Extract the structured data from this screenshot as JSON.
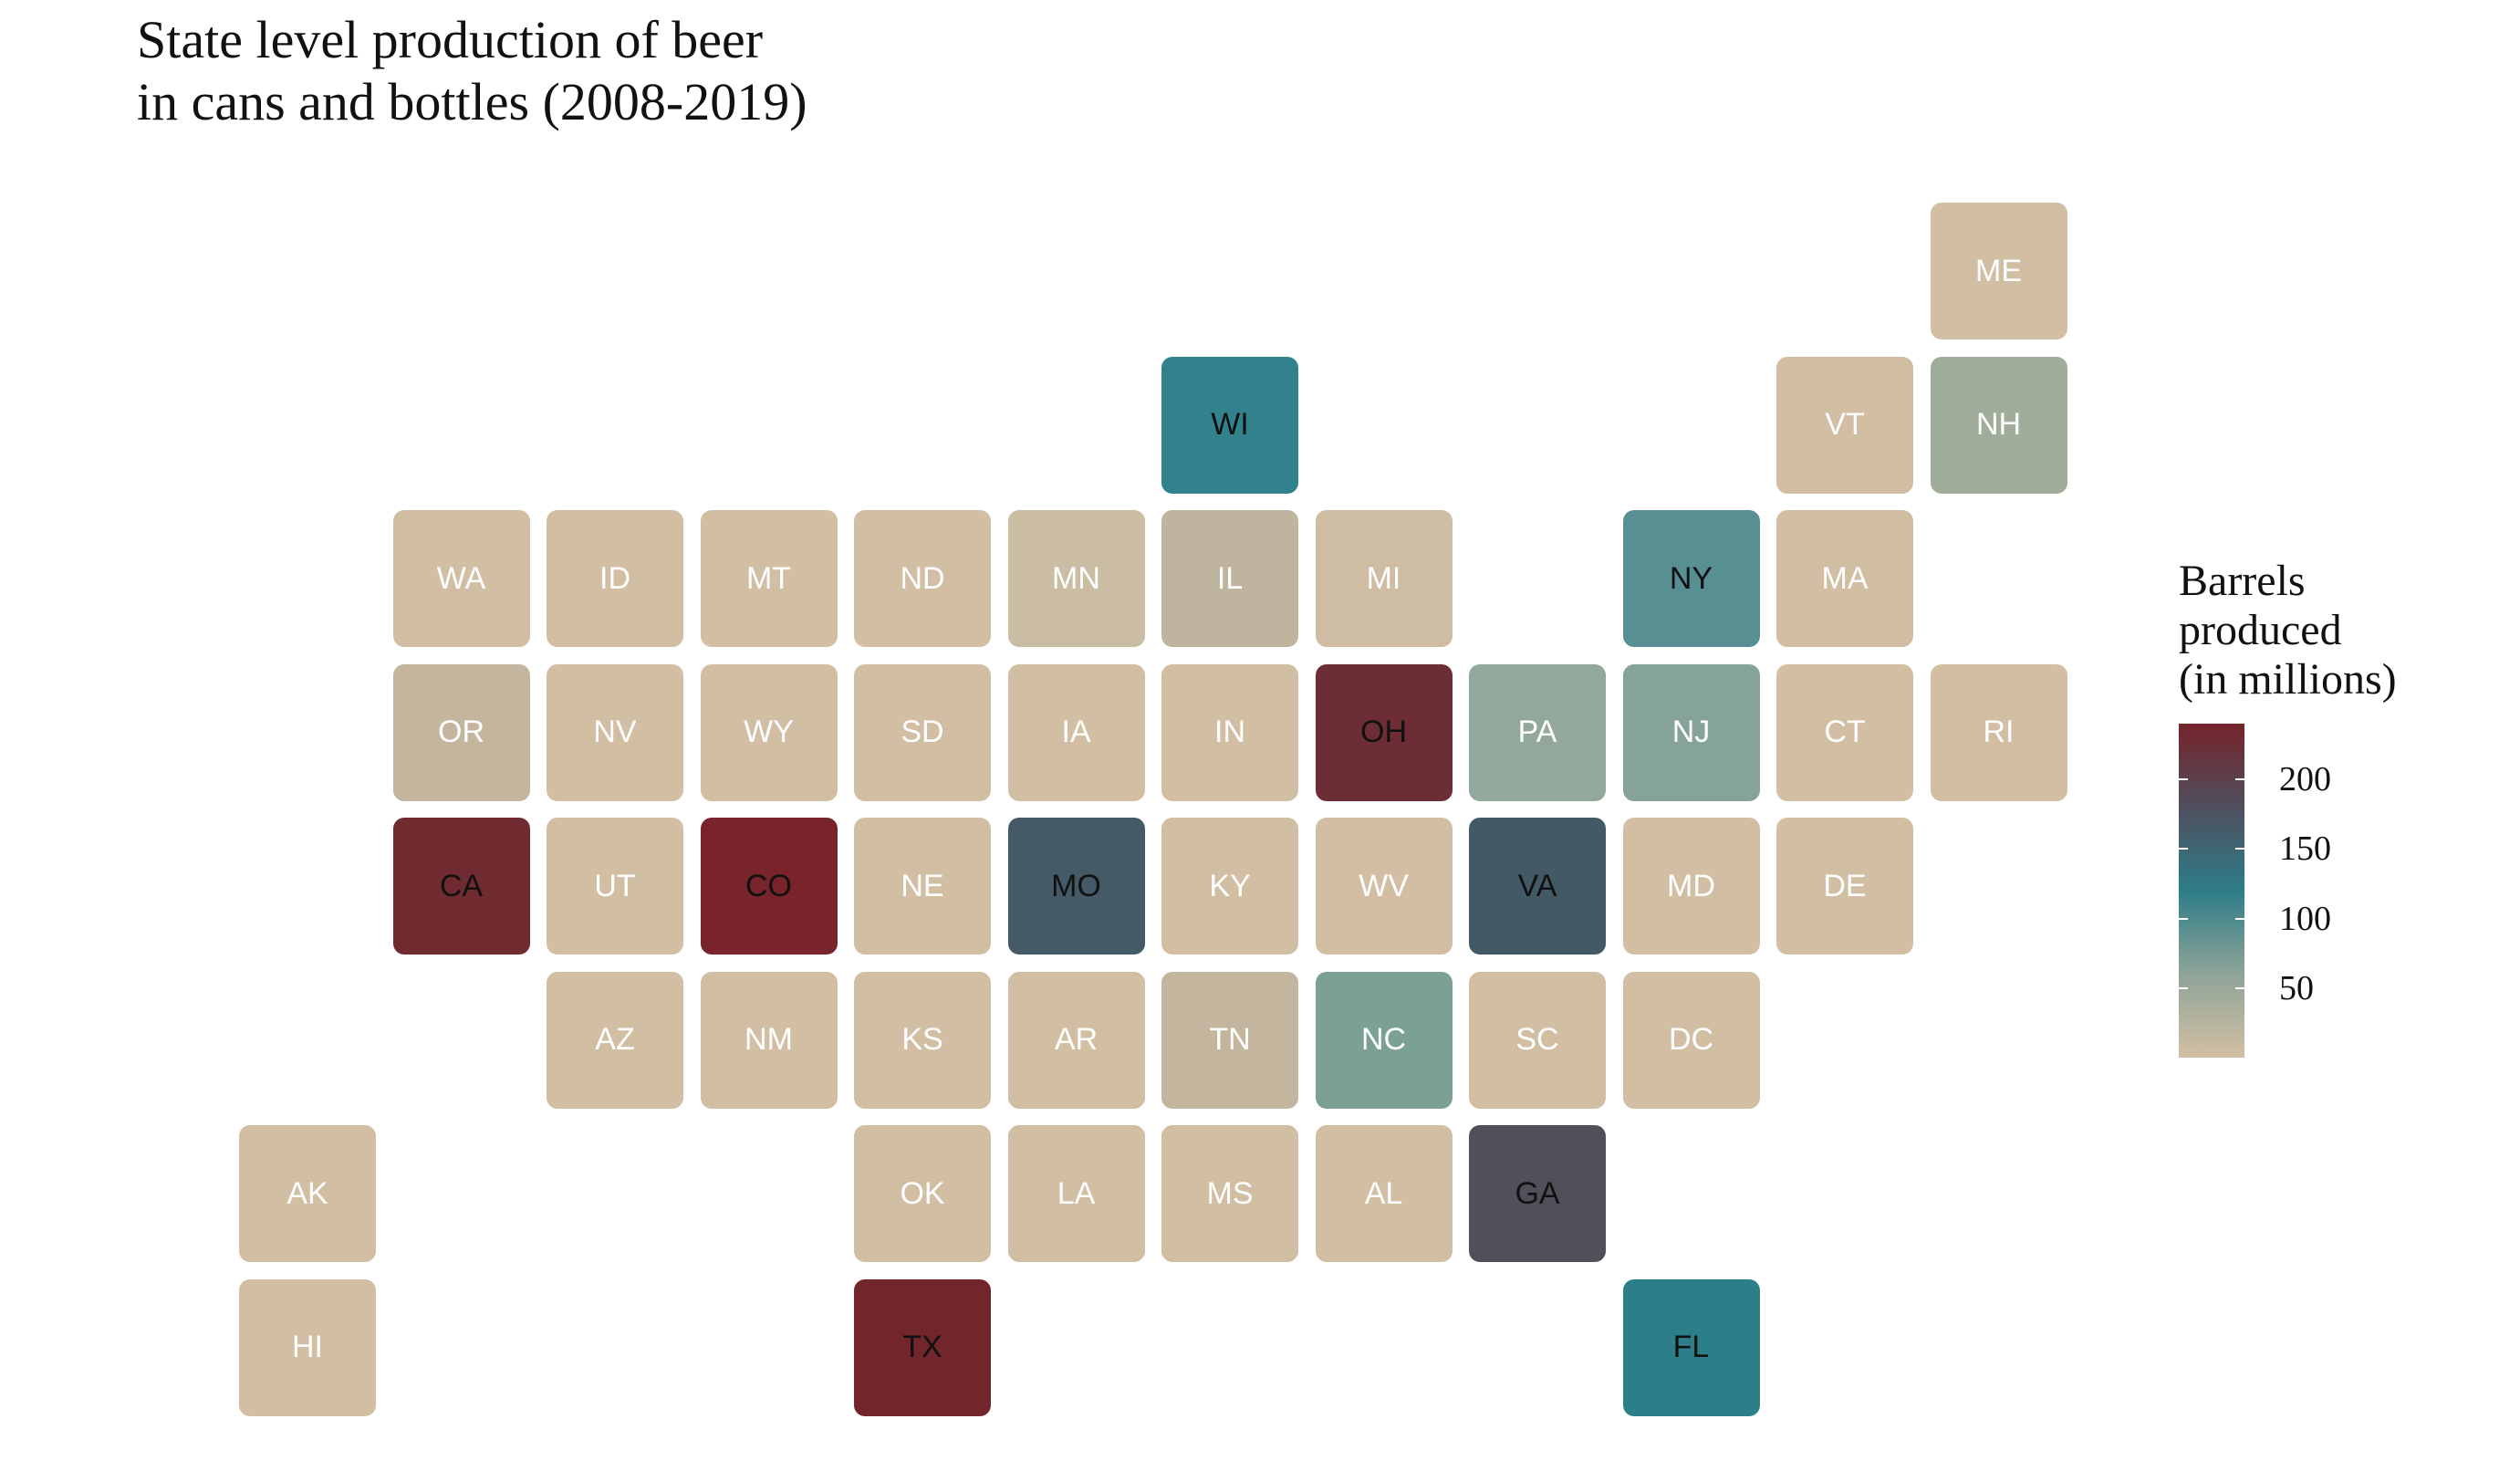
{
  "title_lines": [
    "State level production of beer",
    "in cans and bottles (2008-2019)"
  ],
  "legend": {
    "title_lines": [
      "Barrels",
      "produced",
      "(in millions)"
    ],
    "ticks": [
      200,
      150,
      100,
      50
    ],
    "scale_max": 240,
    "colors": [
      "#d2bfa3",
      "#8ea498",
      "#2e7d88",
      "#4f4f5e",
      "#76232a"
    ]
  },
  "map_data": {
    "type": "tile-grid-map",
    "value_label": "Barrels produced (in millions)",
    "tiles": [
      {
        "state": "ME",
        "col": 11,
        "row": 0,
        "fill": "#d2bfa3",
        "text": "#ffffff"
      },
      {
        "state": "WI",
        "col": 6,
        "row": 1,
        "fill": "#32828d",
        "text": "#111111"
      },
      {
        "state": "VT",
        "col": 10,
        "row": 1,
        "fill": "#d2bfa3",
        "text": "#ffffff"
      },
      {
        "state": "NH",
        "col": 11,
        "row": 1,
        "fill": "#a0ad9b",
        "text": "#ffffff"
      },
      {
        "state": "WA",
        "col": 1,
        "row": 2,
        "fill": "#d2bfa3",
        "text": "#ffffff"
      },
      {
        "state": "ID",
        "col": 2,
        "row": 2,
        "fill": "#d2bfa3",
        "text": "#ffffff"
      },
      {
        "state": "MT",
        "col": 3,
        "row": 2,
        "fill": "#d2bfa3",
        "text": "#ffffff"
      },
      {
        "state": "ND",
        "col": 4,
        "row": 2,
        "fill": "#d2bfa3",
        "text": "#ffffff"
      },
      {
        "state": "MN",
        "col": 5,
        "row": 2,
        "fill": "#cbbca4",
        "text": "#ffffff"
      },
      {
        "state": "IL",
        "col": 6,
        "row": 2,
        "fill": "#bfb59f",
        "text": "#ffffff"
      },
      {
        "state": "MI",
        "col": 7,
        "row": 2,
        "fill": "#cfbda3",
        "text": "#ffffff"
      },
      {
        "state": "NY",
        "col": 9,
        "row": 2,
        "fill": "#578f93",
        "text": "#111111"
      },
      {
        "state": "MA",
        "col": 10,
        "row": 2,
        "fill": "#d2bfa3",
        "text": "#ffffff"
      },
      {
        "state": "OR",
        "col": 1,
        "row": 3,
        "fill": "#c3b59e",
        "text": "#ffffff"
      },
      {
        "state": "NV",
        "col": 2,
        "row": 3,
        "fill": "#d2bfa3",
        "text": "#ffffff"
      },
      {
        "state": "WY",
        "col": 3,
        "row": 3,
        "fill": "#d2bfa3",
        "text": "#ffffff"
      },
      {
        "state": "SD",
        "col": 4,
        "row": 3,
        "fill": "#d2bfa3",
        "text": "#ffffff"
      },
      {
        "state": "IA",
        "col": 5,
        "row": 3,
        "fill": "#d2bfa3",
        "text": "#ffffff"
      },
      {
        "state": "IN",
        "col": 6,
        "row": 3,
        "fill": "#d2bfa3",
        "text": "#ffffff"
      },
      {
        "state": "OH",
        "col": 7,
        "row": 3,
        "fill": "#6c2d34",
        "text": "#111111"
      },
      {
        "state": "PA",
        "col": 8,
        "row": 3,
        "fill": "#92a89a",
        "text": "#ffffff"
      },
      {
        "state": "NJ",
        "col": 9,
        "row": 3,
        "fill": "#85a39a",
        "text": "#ffffff"
      },
      {
        "state": "CT",
        "col": 10,
        "row": 3,
        "fill": "#d2bfa3",
        "text": "#ffffff"
      },
      {
        "state": "RI",
        "col": 11,
        "row": 3,
        "fill": "#d2bfa3",
        "text": "#ffffff"
      },
      {
        "state": "CA",
        "col": 1,
        "row": 4,
        "fill": "#702b31",
        "text": "#111111"
      },
      {
        "state": "UT",
        "col": 2,
        "row": 4,
        "fill": "#d2bfa3",
        "text": "#ffffff"
      },
      {
        "state": "CO",
        "col": 3,
        "row": 4,
        "fill": "#79232a",
        "text": "#111111"
      },
      {
        "state": "NE",
        "col": 4,
        "row": 4,
        "fill": "#d2bfa3",
        "text": "#ffffff"
      },
      {
        "state": "MO",
        "col": 5,
        "row": 4,
        "fill": "#445a66",
        "text": "#111111"
      },
      {
        "state": "KY",
        "col": 6,
        "row": 4,
        "fill": "#d2bfa3",
        "text": "#ffffff"
      },
      {
        "state": "WV",
        "col": 7,
        "row": 4,
        "fill": "#d2bfa3",
        "text": "#ffffff"
      },
      {
        "state": "VA",
        "col": 8,
        "row": 4,
        "fill": "#435965",
        "text": "#111111"
      },
      {
        "state": "MD",
        "col": 9,
        "row": 4,
        "fill": "#d2bfa3",
        "text": "#ffffff"
      },
      {
        "state": "DE",
        "col": 10,
        "row": 4,
        "fill": "#d2bfa3",
        "text": "#ffffff"
      },
      {
        "state": "AZ",
        "col": 2,
        "row": 5,
        "fill": "#d2bfa3",
        "text": "#ffffff"
      },
      {
        "state": "NM",
        "col": 3,
        "row": 5,
        "fill": "#d2bfa3",
        "text": "#ffffff"
      },
      {
        "state": "KS",
        "col": 4,
        "row": 5,
        "fill": "#d2bfa3",
        "text": "#ffffff"
      },
      {
        "state": "AR",
        "col": 5,
        "row": 5,
        "fill": "#d2bfa3",
        "text": "#ffffff"
      },
      {
        "state": "TN",
        "col": 6,
        "row": 5,
        "fill": "#c4b69e",
        "text": "#ffffff"
      },
      {
        "state": "NC",
        "col": 7,
        "row": 5,
        "fill": "#7ba096",
        "text": "#ffffff"
      },
      {
        "state": "SC",
        "col": 8,
        "row": 5,
        "fill": "#d2bfa3",
        "text": "#ffffff"
      },
      {
        "state": "DC",
        "col": 9,
        "row": 5,
        "fill": "#d2bfa3",
        "text": "#ffffff"
      },
      {
        "state": "AK",
        "col": 0,
        "row": 6,
        "fill": "#d2bfa3",
        "text": "#ffffff"
      },
      {
        "state": "OK",
        "col": 4,
        "row": 6,
        "fill": "#d2bfa3",
        "text": "#ffffff"
      },
      {
        "state": "LA",
        "col": 5,
        "row": 6,
        "fill": "#d2bfa3",
        "text": "#ffffff"
      },
      {
        "state": "MS",
        "col": 6,
        "row": 6,
        "fill": "#d2bfa3",
        "text": "#ffffff"
      },
      {
        "state": "AL",
        "col": 7,
        "row": 6,
        "fill": "#d2bfa3",
        "text": "#ffffff"
      },
      {
        "state": "GA",
        "col": 8,
        "row": 6,
        "fill": "#514f5a",
        "text": "#111111"
      },
      {
        "state": "HI",
        "col": 0,
        "row": 7,
        "fill": "#d2bfa3",
        "text": "#ffffff"
      },
      {
        "state": "TX",
        "col": 4,
        "row": 7,
        "fill": "#72262c",
        "text": "#111111"
      },
      {
        "state": "FL",
        "col": 9,
        "row": 7,
        "fill": "#2c7f89",
        "text": "#111111"
      }
    ]
  }
}
